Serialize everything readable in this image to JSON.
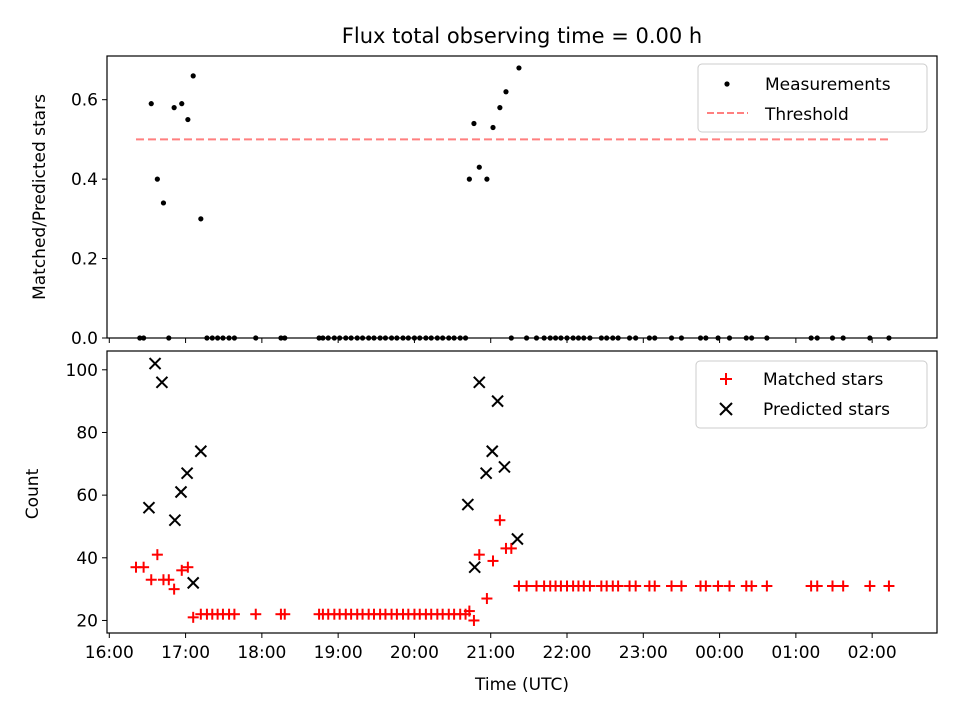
{
  "chart_data": {
    "type": "scatter",
    "title": "Flux total observing time = 0.00 h",
    "xlabel": "Time (UTC)",
    "x_ticks": [
      "16:00",
      "17:00",
      "18:00",
      "19:00",
      "20:00",
      "21:00",
      "22:00",
      "23:00",
      "00:00",
      "01:00",
      "02:00"
    ],
    "x_range_hours": [
      15.97,
      26.85
    ],
    "colors": {
      "measurements": "#000000",
      "threshold": "#ff7f7f",
      "matched": "#ff0000",
      "predicted": "#000000"
    },
    "subplots": [
      {
        "ylabel": "Matched/Predicted stars",
        "ylim": [
          0,
          0.71
        ],
        "y_ticks": [
          "0.0",
          "0.2",
          "0.4",
          "0.6"
        ],
        "legend_position": "upper right",
        "series": [
          {
            "name": "Measurements",
            "marker": "dot",
            "x": [
              16.4,
              16.45,
              16.55,
              16.63,
              16.71,
              16.78,
              16.85,
              16.95,
              17.03,
              17.1,
              17.2,
              17.28,
              17.35,
              17.42,
              17.49,
              17.57,
              17.64,
              17.92,
              18.25,
              18.3,
              18.75,
              18.8,
              18.87,
              18.95,
              19.02,
              19.1,
              19.17,
              19.25,
              19.32,
              19.4,
              19.47,
              19.55,
              19.62,
              19.7,
              19.77,
              19.85,
              19.92,
              20.0,
              20.07,
              20.15,
              20.22,
              20.3,
              20.37,
              20.45,
              20.52,
              20.6,
              20.67,
              20.72,
              20.78,
              20.85,
              20.95,
              21.03,
              21.12,
              21.2,
              21.27,
              21.37,
              21.47,
              21.6,
              21.7,
              21.78,
              21.85,
              21.92,
              22.0,
              22.08,
              22.15,
              22.22,
              22.3,
              22.45,
              22.52,
              22.6,
              22.67,
              22.82,
              22.9,
              23.08,
              23.15,
              23.37,
              23.5,
              23.75,
              23.82,
              23.98,
              24.13,
              24.35,
              24.42,
              24.62,
              25.2,
              25.28,
              25.48,
              25.62,
              25.97,
              26.22
            ],
            "y": [
              0,
              0,
              0.59,
              0.4,
              0.34,
              0,
              0.58,
              0.59,
              0.55,
              0.66,
              0.3,
              0,
              0,
              0,
              0,
              0,
              0,
              0,
              0,
              0,
              0,
              0,
              0,
              0,
              0,
              0,
              0,
              0,
              0,
              0,
              0,
              0,
              0,
              0,
              0,
              0,
              0,
              0,
              0,
              0,
              0,
              0,
              0,
              0,
              0,
              0,
              0,
              0.4,
              0.54,
              0.43,
              0.4,
              0.53,
              0.58,
              0.62,
              0,
              0.68,
              0,
              0,
              0,
              0,
              0,
              0,
              0,
              0,
              0,
              0,
              0,
              0,
              0,
              0,
              0,
              0,
              0,
              0,
              0,
              0,
              0,
              0,
              0,
              0,
              0,
              0,
              0,
              0,
              0,
              0,
              0,
              0,
              0,
              0
            ]
          },
          {
            "name": "Threshold",
            "marker": "dashed-line",
            "x": [
              16.35,
              26.22
            ],
            "y": [
              0.5,
              0.5
            ]
          }
        ]
      },
      {
        "ylabel": "Count",
        "ylim": [
          16,
          106
        ],
        "y_ticks": [
          "20",
          "40",
          "60",
          "80",
          "100"
        ],
        "legend_position": "upper right",
        "series": [
          {
            "name": "Matched stars",
            "marker": "plus",
            "x": [
              16.35,
              16.45,
              16.55,
              16.63,
              16.71,
              16.78,
              16.85,
              16.95,
              17.03,
              17.1,
              17.2,
              17.28,
              17.35,
              17.42,
              17.49,
              17.57,
              17.64,
              17.92,
              18.25,
              18.3,
              18.75,
              18.8,
              18.87,
              18.95,
              19.02,
              19.1,
              19.17,
              19.25,
              19.32,
              19.4,
              19.47,
              19.55,
              19.62,
              19.7,
              19.77,
              19.85,
              19.92,
              20.0,
              20.07,
              20.15,
              20.22,
              20.3,
              20.37,
              20.45,
              20.52,
              20.6,
              20.67,
              20.72,
              20.78,
              20.85,
              20.95,
              21.03,
              21.12,
              21.2,
              21.27,
              21.37,
              21.47,
              21.6,
              21.7,
              21.78,
              21.85,
              21.92,
              22.0,
              22.08,
              22.15,
              22.22,
              22.3,
              22.45,
              22.52,
              22.6,
              22.67,
              22.82,
              22.9,
              23.08,
              23.15,
              23.37,
              23.5,
              23.75,
              23.82,
              23.98,
              24.13,
              24.35,
              24.42,
              24.62,
              25.2,
              25.28,
              25.48,
              25.62,
              25.97,
              26.22
            ],
            "y": [
              37,
              37,
              33,
              41,
              33,
              33,
              30,
              36,
              37,
              21,
              22,
              22,
              22,
              22,
              22,
              22,
              22,
              22,
              22,
              22,
              22,
              22,
              22,
              22,
              22,
              22,
              22,
              22,
              22,
              22,
              22,
              22,
              22,
              22,
              22,
              22,
              22,
              22,
              22,
              22,
              22,
              22,
              22,
              22,
              22,
              22,
              22,
              23,
              20,
              41,
              27,
              39,
              52,
              43,
              43,
              31,
              31,
              31,
              31,
              31,
              31,
              31,
              31,
              31,
              31,
              31,
              31,
              31,
              31,
              31,
              31,
              31,
              31,
              31,
              31,
              31,
              31,
              31,
              31,
              31,
              31,
              31,
              31,
              31,
              31,
              31,
              31,
              31,
              31,
              31
            ]
          },
          {
            "name": "Predicted stars",
            "marker": "x",
            "x": [
              16.52,
              16.6,
              16.69,
              16.86,
              16.94,
              17.02,
              17.1,
              17.2,
              20.7,
              20.79,
              20.85,
              20.94,
              21.02,
              21.09,
              21.18,
              21.35
            ],
            "y": [
              56,
              102,
              96,
              52,
              61,
              67,
              32,
              74,
              57,
              37,
              96,
              67,
              74,
              90,
              69,
              46
            ]
          }
        ]
      }
    ]
  }
}
